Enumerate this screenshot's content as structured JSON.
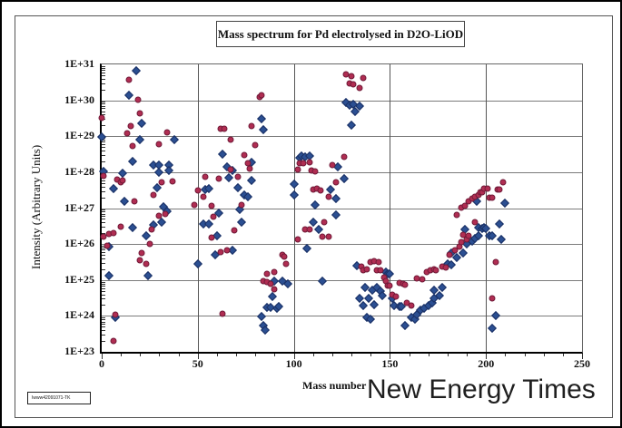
{
  "figure": {
    "title": "Mass spectrum for Pd electrolysed in D2O-LiOD",
    "watermark": "New Energy Times",
    "footer_label": "Iwww42091071-TK"
  },
  "chart_data": {
    "type": "scatter",
    "title": "Mass spectrum for Pd electrolysed in D2O-LiOD",
    "xlabel": "Mass number",
    "ylabel": "Intensity (Arbitrary Units)",
    "grid": true,
    "legend_position": "none",
    "x_axis": {
      "min": 0,
      "max": 250,
      "major_ticks": [
        0,
        50,
        100,
        150,
        200,
        250
      ],
      "minor_tick_step": 10,
      "gridlines": [
        50,
        100,
        150,
        200
      ]
    },
    "y_axis": {
      "scale": "log",
      "min_exp": 23,
      "max_exp": 31,
      "tick_labels": [
        "1E+31",
        "1E+30",
        "1E+29",
        "1E+28",
        "1E+27",
        "1E+26",
        "1E+25",
        "1E+24",
        "1E+23"
      ],
      "tick_exps": [
        31,
        30,
        29,
        28,
        27,
        26,
        25,
        24,
        23
      ],
      "gridline_exps": [
        24,
        25,
        26,
        27,
        28,
        29,
        30
      ]
    },
    "point_format": "[mass_number, log10_intensity] estimated from pixels",
    "series": [
      {
        "name": "blue-diamonds",
        "marker": "diamond",
        "color": "#2b4f92",
        "edge_color": "#1a2f63",
        "points": [
          [
            0,
            28.97
          ],
          [
            1,
            28.03
          ],
          [
            4,
            25.13
          ],
          [
            4,
            25.92
          ],
          [
            6,
            27.54
          ],
          [
            7,
            23.95
          ],
          [
            11,
            27.96
          ],
          [
            12,
            27.18
          ],
          [
            14,
            30.15
          ],
          [
            16,
            28.31
          ],
          [
            16,
            26.47
          ],
          [
            18,
            30.82
          ],
          [
            20,
            28.91
          ],
          [
            21,
            29.37
          ],
          [
            23,
            26.22
          ],
          [
            24,
            25.13
          ],
          [
            27,
            28.21
          ],
          [
            27,
            26.53
          ],
          [
            29,
            27.57
          ],
          [
            30,
            28.0
          ],
          [
            30,
            28.2
          ],
          [
            31,
            26.62
          ],
          [
            32,
            27.04
          ],
          [
            34,
            26.91
          ],
          [
            35,
            28.2
          ],
          [
            35,
            28.05
          ],
          [
            38,
            28.91
          ],
          [
            50,
            25.46
          ],
          [
            53,
            26.57
          ],
          [
            54,
            27.52
          ],
          [
            56,
            27.54
          ],
          [
            56,
            26.57
          ],
          [
            59,
            25.69
          ],
          [
            60,
            26.22
          ],
          [
            61,
            26.85
          ],
          [
            63,
            28.49
          ],
          [
            65,
            28.15
          ],
          [
            66,
            27.84
          ],
          [
            68,
            28.04
          ],
          [
            68,
            25.83
          ],
          [
            71,
            27.57
          ],
          [
            72,
            26.95
          ],
          [
            73,
            26.6
          ],
          [
            74,
            27.37
          ],
          [
            76,
            27.31
          ],
          [
            78,
            28.27
          ],
          [
            78,
            27.77
          ],
          [
            83,
            29.48
          ],
          [
            83,
            23.98
          ],
          [
            84,
            23.73
          ],
          [
            84,
            29.18
          ],
          [
            85,
            23.61
          ],
          [
            86,
            24.23
          ],
          [
            88,
            24.23
          ],
          [
            89,
            24.54
          ],
          [
            90,
            24.97
          ],
          [
            91,
            24.21
          ],
          [
            92,
            24.25
          ],
          [
            94,
            24.97
          ],
          [
            97,
            24.9
          ],
          [
            100,
            27.67
          ],
          [
            100,
            27.37
          ],
          [
            103,
            28.41
          ],
          [
            104,
            28.45
          ],
          [
            106,
            28.43
          ],
          [
            107,
            25.88
          ],
          [
            108,
            28.45
          ],
          [
            110,
            26.62
          ],
          [
            111,
            27.09
          ],
          [
            113,
            26.4
          ],
          [
            115,
            24.96
          ],
          [
            119,
            27.52
          ],
          [
            122,
            27.26
          ],
          [
            122,
            26.82
          ],
          [
            123,
            28.16
          ],
          [
            126,
            27.82
          ],
          [
            127,
            29.94
          ],
          [
            129,
            29.87
          ],
          [
            130,
            29.31
          ],
          [
            131,
            29.89
          ],
          [
            132,
            29.69
          ],
          [
            133,
            25.39
          ],
          [
            134,
            29.83
          ],
          [
            134,
            24.48
          ],
          [
            136,
            24.28
          ],
          [
            137,
            24.79
          ],
          [
            138,
            23.95
          ],
          [
            139,
            24.5
          ],
          [
            140,
            23.9
          ],
          [
            141,
            24.71
          ],
          [
            142,
            24.3
          ],
          [
            143,
            24.79
          ],
          [
            145,
            24.7
          ],
          [
            146,
            24.57
          ],
          [
            148,
            25.21
          ],
          [
            149,
            25.16
          ],
          [
            150,
            25.17
          ],
          [
            151,
            24.5
          ],
          [
            152,
            24.28
          ],
          [
            155,
            24.25
          ],
          [
            156,
            24.25
          ],
          [
            158,
            23.73
          ],
          [
            161,
            23.95
          ],
          [
            163,
            23.92
          ],
          [
            164,
            24.03
          ],
          [
            166,
            24.15
          ],
          [
            168,
            24.2
          ],
          [
            170,
            24.28
          ],
          [
            172,
            24.36
          ],
          [
            173,
            24.71
          ],
          [
            173,
            24.48
          ],
          [
            176,
            24.57
          ],
          [
            177,
            24.79
          ],
          [
            180,
            25.46
          ],
          [
            182,
            25.75
          ],
          [
            182,
            25.43
          ],
          [
            185,
            25.63
          ],
          [
            188,
            25.75
          ],
          [
            189,
            26.4
          ],
          [
            190,
            26.01
          ],
          [
            193,
            26.09
          ],
          [
            194,
            26.15
          ],
          [
            195,
            27.2
          ],
          [
            196,
            26.22
          ],
          [
            196,
            26.45
          ],
          [
            198,
            26.44
          ],
          [
            199,
            26.45
          ],
          [
            200,
            26.44
          ],
          [
            202,
            26.23
          ],
          [
            203,
            26.23
          ],
          [
            203,
            23.65
          ],
          [
            205,
            24.02
          ],
          [
            207,
            26.55
          ],
          [
            208,
            26.14
          ],
          [
            210,
            27.14
          ]
        ]
      },
      {
        "name": "red-circles",
        "marker": "circle",
        "color": "#b02d52",
        "edge_color": "#701a38",
        "points": [
          [
            0,
            29.5
          ],
          [
            1,
            27.9
          ],
          [
            1,
            26.2
          ],
          [
            3,
            25.96
          ],
          [
            4,
            26.28
          ],
          [
            6,
            26.3
          ],
          [
            6,
            23.3
          ],
          [
            7,
            24.03
          ],
          [
            8,
            27.79
          ],
          [
            10,
            26.49
          ],
          [
            10,
            27.73
          ],
          [
            11,
            27.76
          ],
          [
            13,
            29.08
          ],
          [
            14,
            30.57
          ],
          [
            15,
            29.28
          ],
          [
            16,
            28.74
          ],
          [
            17,
            27.18
          ],
          [
            19,
            30.02
          ],
          [
            20,
            25.55
          ],
          [
            20,
            29.64
          ],
          [
            21,
            25.75
          ],
          [
            23,
            25.46
          ],
          [
            25,
            26.0
          ],
          [
            26,
            26.4
          ],
          [
            27,
            27.37
          ],
          [
            30,
            28.78
          ],
          [
            30,
            26.79
          ],
          [
            31,
            27.72
          ],
          [
            33,
            26.83
          ],
          [
            34,
            29.1
          ],
          [
            37,
            27.75
          ],
          [
            48,
            27.08
          ],
          [
            50,
            27.5
          ],
          [
            53,
            27.31
          ],
          [
            54,
            27.88
          ],
          [
            57,
            27.06
          ],
          [
            57,
            26.17
          ],
          [
            58,
            26.77
          ],
          [
            61,
            27.82
          ],
          [
            62,
            29.2
          ],
          [
            62,
            25.77
          ],
          [
            63,
            24.06
          ],
          [
            64,
            29.22
          ],
          [
            65,
            25.83
          ],
          [
            67,
            28.91
          ],
          [
            67,
            28.06
          ],
          [
            69,
            26.37
          ],
          [
            71,
            27.86
          ],
          [
            73,
            27.08
          ],
          [
            74,
            28.47
          ],
          [
            76,
            28.26
          ],
          [
            77,
            28.1
          ],
          [
            78,
            29.28
          ],
          [
            80,
            28.76
          ],
          [
            82,
            30.1
          ],
          [
            83,
            30.15
          ],
          [
            84,
            24.97
          ],
          [
            86,
            24.95
          ],
          [
            86,
            25.16
          ],
          [
            88,
            24.9
          ],
          [
            90,
            25.21
          ],
          [
            90,
            24.74
          ],
          [
            94,
            25.69
          ],
          [
            95,
            25.64
          ],
          [
            96,
            25.44
          ],
          [
            102,
            26.13
          ],
          [
            102,
            28.07
          ],
          [
            103,
            28.24
          ],
          [
            105,
            28.25
          ],
          [
            106,
            26.41
          ],
          [
            108,
            28.27
          ],
          [
            108,
            26.41
          ],
          [
            109,
            28.05
          ],
          [
            110,
            27.52
          ],
          [
            111,
            28.03
          ],
          [
            112,
            27.53
          ],
          [
            114,
            27.5
          ],
          [
            115,
            26.21
          ],
          [
            116,
            26.6
          ],
          [
            118,
            27.31
          ],
          [
            118,
            26.21
          ],
          [
            120,
            28.21
          ],
          [
            122,
            27.73
          ],
          [
            126,
            28.43
          ],
          [
            127,
            30.71
          ],
          [
            129,
            30.46
          ],
          [
            130,
            30.68
          ],
          [
            131,
            30.45
          ],
          [
            134,
            30.34
          ],
          [
            135,
            25.38
          ],
          [
            136,
            30.61
          ],
          [
            136,
            25.27
          ],
          [
            138,
            25.3
          ],
          [
            140,
            25.49
          ],
          [
            142,
            25.52
          ],
          [
            143,
            25.27
          ],
          [
            144,
            25.49
          ],
          [
            145,
            25.28
          ],
          [
            147,
            25.06
          ],
          [
            148,
            24.96
          ],
          [
            149,
            24.85
          ],
          [
            150,
            24.83
          ],
          [
            151,
            24.6
          ],
          [
            153,
            24.54
          ],
          [
            155,
            24.93
          ],
          [
            157,
            24.9
          ],
          [
            158,
            24.88
          ],
          [
            159,
            24.36
          ],
          [
            161,
            24.28
          ],
          [
            164,
            25.05
          ],
          [
            167,
            25.03
          ],
          [
            169,
            25.21
          ],
          [
            171,
            25.27
          ],
          [
            173,
            25.3
          ],
          [
            174,
            25.28
          ],
          [
            177,
            25.37
          ],
          [
            179,
            25.35
          ],
          [
            181,
            25.69
          ],
          [
            184,
            25.83
          ],
          [
            185,
            26.82
          ],
          [
            186,
            25.92
          ],
          [
            187,
            27.02
          ],
          [
            187,
            26.06
          ],
          [
            188,
            26.25
          ],
          [
            189,
            27.06
          ],
          [
            190,
            26.13
          ],
          [
            191,
            27.18
          ],
          [
            191,
            26.22
          ],
          [
            193,
            27.26
          ],
          [
            194,
            27.31
          ],
          [
            194,
            26.62
          ],
          [
            196,
            27.37
          ],
          [
            197,
            27.44
          ],
          [
            198,
            27.43
          ],
          [
            199,
            27.54
          ],
          [
            201,
            27.54
          ],
          [
            202,
            27.29
          ],
          [
            203,
            27.29
          ],
          [
            203,
            24.5
          ],
          [
            205,
            25.5
          ],
          [
            206,
            27.52
          ],
          [
            207,
            27.52
          ],
          [
            209,
            27.72
          ]
        ]
      }
    ]
  }
}
